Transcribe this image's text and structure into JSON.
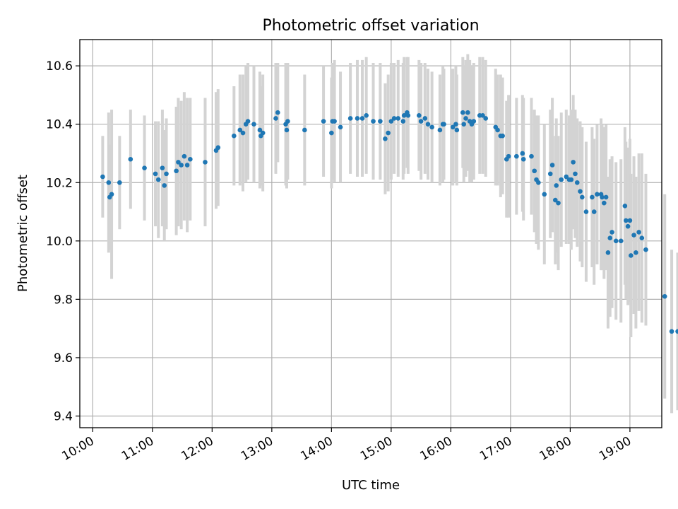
{
  "chart_data": {
    "type": "scatter",
    "title": "Photometric offset variation",
    "xlabel": "UTC time",
    "ylabel": "Photometric offset",
    "x_ticks": [
      "10:00",
      "11:00",
      "12:00",
      "13:00",
      "14:00",
      "15:00",
      "16:00",
      "17:00",
      "18:00",
      "19:00"
    ],
    "y_ticks": [
      "9.4",
      "9.6",
      "9.8",
      "10.0",
      "10.2",
      "10.4",
      "10.6"
    ],
    "xlim": [
      "09:47",
      "19:32"
    ],
    "ylim": [
      9.36,
      10.69
    ],
    "grid": true,
    "colors": {
      "point": "#1f77b4",
      "errorbar": "#d3d3d3",
      "grid": "#b0b0b0"
    },
    "series": [
      {
        "points": [
          [
            "10:10",
            10.22,
            0.14
          ],
          [
            "10:16",
            10.2,
            0.24
          ],
          [
            "10:17",
            10.15,
            0.18
          ],
          [
            "10:19",
            10.16,
            0.29
          ],
          [
            "10:27",
            10.2,
            0.16
          ],
          [
            "10:38",
            10.28,
            0.17
          ],
          [
            "10:52",
            10.25,
            0.18
          ],
          [
            "11:03",
            10.23,
            0.18
          ],
          [
            "11:06",
            10.21,
            0.2
          ],
          [
            "11:10",
            10.25,
            0.2
          ],
          [
            "11:12",
            10.19,
            0.19
          ],
          [
            "11:14",
            10.23,
            0.19
          ],
          [
            "11:24",
            10.24,
            0.22
          ],
          [
            "11:26",
            10.27,
            0.22
          ],
          [
            "11:29",
            10.26,
            0.22
          ],
          [
            "11:32",
            10.29,
            0.22
          ],
          [
            "11:35",
            10.26,
            0.23
          ],
          [
            "11:38",
            10.28,
            0.21
          ],
          [
            "11:53",
            10.27,
            0.22
          ],
          [
            "12:04",
            10.31,
            0.2
          ],
          [
            "12:06",
            10.32,
            0.2
          ],
          [
            "12:22",
            10.36,
            0.17
          ],
          [
            "12:28",
            10.38,
            0.19
          ],
          [
            "12:31",
            10.37,
            0.2
          ],
          [
            "12:34",
            10.4,
            0.2
          ],
          [
            "12:36",
            10.41,
            0.2
          ],
          [
            "12:42",
            10.4,
            0.2
          ],
          [
            "12:48",
            10.38,
            0.2
          ],
          [
            "12:49",
            10.36,
            0.17
          ],
          [
            "12:51",
            10.37,
            0.2
          ],
          [
            "13:04",
            10.42,
            0.19
          ],
          [
            "13:06",
            10.44,
            0.17
          ],
          [
            "13:14",
            10.4,
            0.21
          ],
          [
            "13:15",
            10.38,
            0.2
          ],
          [
            "13:16",
            10.41,
            0.2
          ],
          [
            "13:33",
            10.38,
            0.19
          ],
          [
            "13:52",
            10.41,
            0.19
          ],
          [
            "14:00",
            10.37,
            0.19
          ],
          [
            "14:01",
            10.41,
            0.2
          ],
          [
            "14:03",
            10.41,
            0.21
          ],
          [
            "14:09",
            10.39,
            0.19
          ],
          [
            "14:19",
            10.42,
            0.19
          ],
          [
            "14:26",
            10.42,
            0.2
          ],
          [
            "14:31",
            10.42,
            0.2
          ],
          [
            "14:35",
            10.43,
            0.2
          ],
          [
            "14:42",
            10.41,
            0.2
          ],
          [
            "14:49",
            10.41,
            0.2
          ],
          [
            "14:54",
            10.35,
            0.19
          ],
          [
            "14:57",
            10.37,
            0.2
          ],
          [
            "15:00",
            10.41,
            0.2
          ],
          [
            "15:03",
            10.42,
            0.19
          ],
          [
            "15:07",
            10.42,
            0.2
          ],
          [
            "15:12",
            10.41,
            0.2
          ],
          [
            "15:13",
            10.43,
            0.2
          ],
          [
            "15:16",
            10.44,
            0.19
          ],
          [
            "15:17",
            10.43,
            0.2
          ],
          [
            "15:28",
            10.43,
            0.19
          ],
          [
            "15:30",
            10.41,
            0.2
          ],
          [
            "15:34",
            10.42,
            0.19
          ],
          [
            "15:37",
            10.4,
            0.19
          ],
          [
            "15:41",
            10.39,
            0.19
          ],
          [
            "15:49",
            10.38,
            0.19
          ],
          [
            "15:52",
            10.4,
            0.2
          ],
          [
            "15:53",
            10.4,
            0.19
          ],
          [
            "16:02",
            10.39,
            0.2
          ],
          [
            "16:05",
            10.4,
            0.2
          ],
          [
            "16:06",
            10.38,
            0.19
          ],
          [
            "16:12",
            10.44,
            0.19
          ],
          [
            "16:13",
            10.4,
            0.2
          ],
          [
            "16:15",
            10.42,
            0.2
          ],
          [
            "16:17",
            10.44,
            0.2
          ],
          [
            "16:19",
            10.41,
            0.21
          ],
          [
            "16:21",
            10.4,
            0.2
          ],
          [
            "16:23",
            10.41,
            0.2
          ],
          [
            "16:29",
            10.43,
            0.2
          ],
          [
            "16:32",
            10.43,
            0.2
          ],
          [
            "16:35",
            10.42,
            0.2
          ],
          [
            "16:45",
            10.39,
            0.2
          ],
          [
            "16:47",
            10.38,
            0.19
          ],
          [
            "16:50",
            10.36,
            0.21
          ],
          [
            "16:52",
            10.36,
            0.2
          ],
          [
            "16:56",
            10.28,
            0.2
          ],
          [
            "16:58",
            10.29,
            0.21
          ],
          [
            "17:06",
            10.29,
            0.2
          ],
          [
            "17:12",
            10.3,
            0.2
          ],
          [
            "17:13",
            10.28,
            0.21
          ],
          [
            "17:21",
            10.29,
            0.2
          ],
          [
            "17:24",
            10.24,
            0.21
          ],
          [
            "17:26",
            10.21,
            0.22
          ],
          [
            "17:28",
            10.2,
            0.23
          ],
          [
            "17:34",
            10.16,
            0.24
          ],
          [
            "17:40",
            10.23,
            0.22
          ],
          [
            "17:42",
            10.26,
            0.23
          ],
          [
            "17:45",
            10.14,
            0.22
          ],
          [
            "17:46",
            10.19,
            0.23
          ],
          [
            "17:48",
            10.13,
            0.23
          ],
          [
            "17:51",
            10.21,
            0.23
          ],
          [
            "17:56",
            10.22,
            0.23
          ],
          [
            "17:59",
            10.21,
            0.22
          ],
          [
            "18:01",
            10.21,
            0.24
          ],
          [
            "18:03",
            10.27,
            0.23
          ],
          [
            "18:05",
            10.23,
            0.22
          ],
          [
            "18:07",
            10.2,
            0.22
          ],
          [
            "18:10",
            10.17,
            0.24
          ],
          [
            "18:12",
            10.15,
            0.24
          ],
          [
            "18:16",
            10.1,
            0.24
          ],
          [
            "18:22",
            10.15,
            0.24
          ],
          [
            "18:24",
            10.1,
            0.25
          ],
          [
            "18:27",
            10.16,
            0.24
          ],
          [
            "18:31",
            10.16,
            0.26
          ],
          [
            "18:32",
            10.15,
            0.25
          ],
          [
            "18:34",
            10.13,
            0.26
          ],
          [
            "18:36",
            10.15,
            0.25
          ],
          [
            "18:38",
            9.96,
            0.26
          ],
          [
            "18:40",
            10.01,
            0.27
          ],
          [
            "18:42",
            10.03,
            0.26
          ],
          [
            "18:46",
            10.0,
            0.27
          ],
          [
            "18:51",
            10.0,
            0.28
          ],
          [
            "18:55",
            10.12,
            0.27
          ],
          [
            "18:56",
            10.07,
            0.27
          ],
          [
            "18:58",
            10.05,
            0.27
          ],
          [
            "19:00",
            10.07,
            0.28
          ],
          [
            "19:01",
            9.95,
            0.28
          ],
          [
            "19:04",
            10.02,
            0.27
          ],
          [
            "19:06",
            9.96,
            0.26
          ],
          [
            "19:09",
            10.03,
            0.27
          ],
          [
            "19:12",
            10.01,
            0.29
          ],
          [
            "19:16",
            9.97,
            0.26
          ],
          [
            "19:35",
            9.81,
            0.35
          ],
          [
            "19:42",
            9.69,
            0.28
          ],
          [
            "19:48",
            9.69,
            0.27
          ]
        ]
      }
    ]
  }
}
